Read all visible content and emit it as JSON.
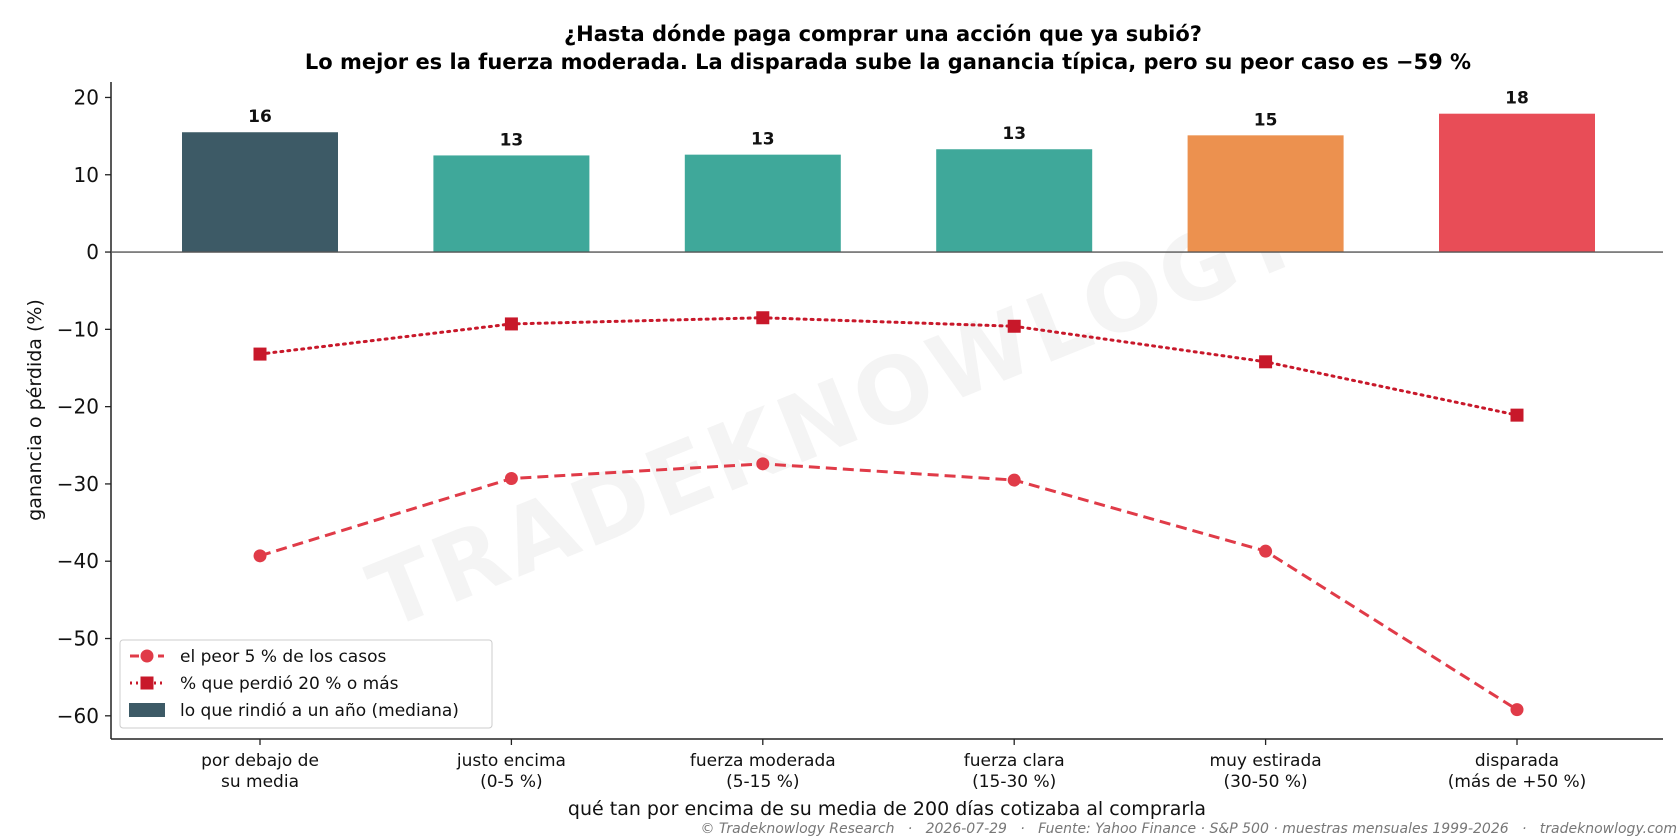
{
  "chart_data": {
    "type": "bar",
    "title_line1": "¿Hasta dónde paga comprar una acción que ya subió?",
    "title_line2": "Lo mejor es la fuerza moderada. La disparada sube la ganancia típica, pero su peor caso es −59 %",
    "xlabel": "qué tan por encima de su media de 200 días cotizaba al comprarla",
    "ylabel": "ganancia o pérdida (%)",
    "ylim": [
      -63,
      22
    ],
    "yticks": [
      20,
      10,
      0,
      -10,
      -20,
      -30,
      -40,
      -50,
      -60
    ],
    "ytick_labels": [
      "20",
      "10",
      "0",
      "−10",
      "−20",
      "−30",
      "−40",
      "−50",
      "−60"
    ],
    "categories": [
      [
        "por debajo de",
        "su media"
      ],
      [
        "justo encima",
        "(0-5 %)"
      ],
      [
        "fuerza moderada",
        "(5-15 %)"
      ],
      [
        "fuerza clara",
        "(15-30 %)"
      ],
      [
        "muy estirada",
        "(30-50 %)"
      ],
      [
        "disparada",
        "(más de +50 %)"
      ]
    ],
    "series": [
      {
        "name": "lo que rindió a un año (mediana)",
        "kind": "bar",
        "values": [
          15.5,
          12.5,
          12.6,
          13.3,
          15.1,
          17.9
        ],
        "labels": [
          "16",
          "13",
          "13",
          "13",
          "15",
          "18"
        ],
        "colors": [
          "#3d5a66",
          "#3fa89a",
          "#3fa89a",
          "#3fa89a",
          "#ec914f",
          "#e84d57"
        ]
      },
      {
        "name": "el peor 5 % de los casos",
        "kind": "line",
        "style": "dashed",
        "marker": "circle",
        "color": "#e03b48",
        "values": [
          -39.3,
          -29.3,
          -27.4,
          -29.5,
          -38.7,
          -59.2
        ]
      },
      {
        "name": "% que perdió 20 % o más",
        "kind": "line",
        "style": "dotted",
        "marker": "square",
        "color": "#c8182a",
        "values": [
          -13.2,
          -9.3,
          -8.5,
          -9.6,
          -14.2,
          -21.1
        ]
      }
    ],
    "legend_position": "lower-left",
    "grid": false,
    "watermark": "TRADEKNOWLOGY",
    "footer": "© Tradeknowlogy Research   ·   2026-07-29   ·   Fuente: Yahoo Finance · S&P 500 · muestras mensuales 1999-2026   ·   tradeknowlogy.com"
  }
}
